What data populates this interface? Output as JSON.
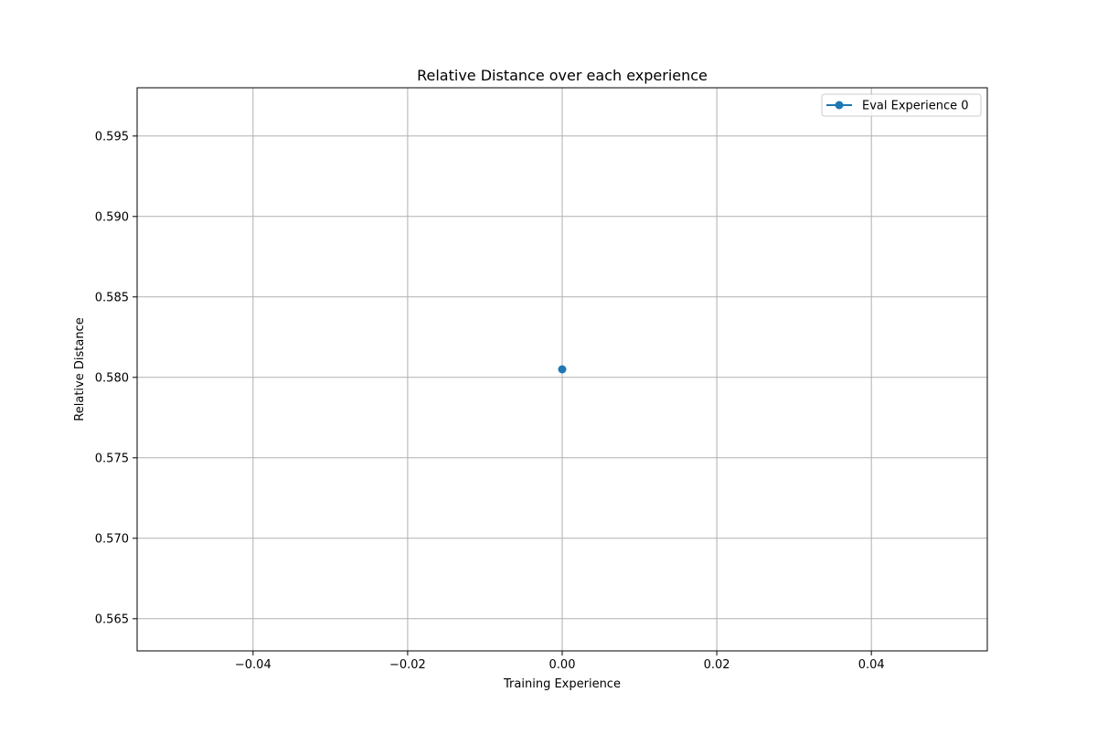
{
  "chart_data": {
    "type": "line",
    "title": "Relative Distance over each experience",
    "xlabel": "Training Experience",
    "ylabel": "Relative Distance",
    "xlim": [
      -0.055,
      0.055
    ],
    "ylim": [
      0.563,
      0.598
    ],
    "xticks": [
      -0.04,
      -0.02,
      0.0,
      0.02,
      0.04
    ],
    "xtick_labels": [
      "−0.04",
      "−0.02",
      "0.00",
      "0.02",
      "0.04"
    ],
    "yticks": [
      0.565,
      0.57,
      0.575,
      0.58,
      0.585,
      0.59,
      0.595
    ],
    "ytick_labels": [
      "0.565",
      "0.570",
      "0.575",
      "0.580",
      "0.585",
      "0.590",
      "0.595"
    ],
    "grid": true,
    "legend_position": "top-right",
    "series": [
      {
        "name": "Eval Experience 0",
        "color": "#1f77b4",
        "marker": "circle",
        "x": [
          0
        ],
        "y": [
          0.5805
        ]
      }
    ]
  }
}
